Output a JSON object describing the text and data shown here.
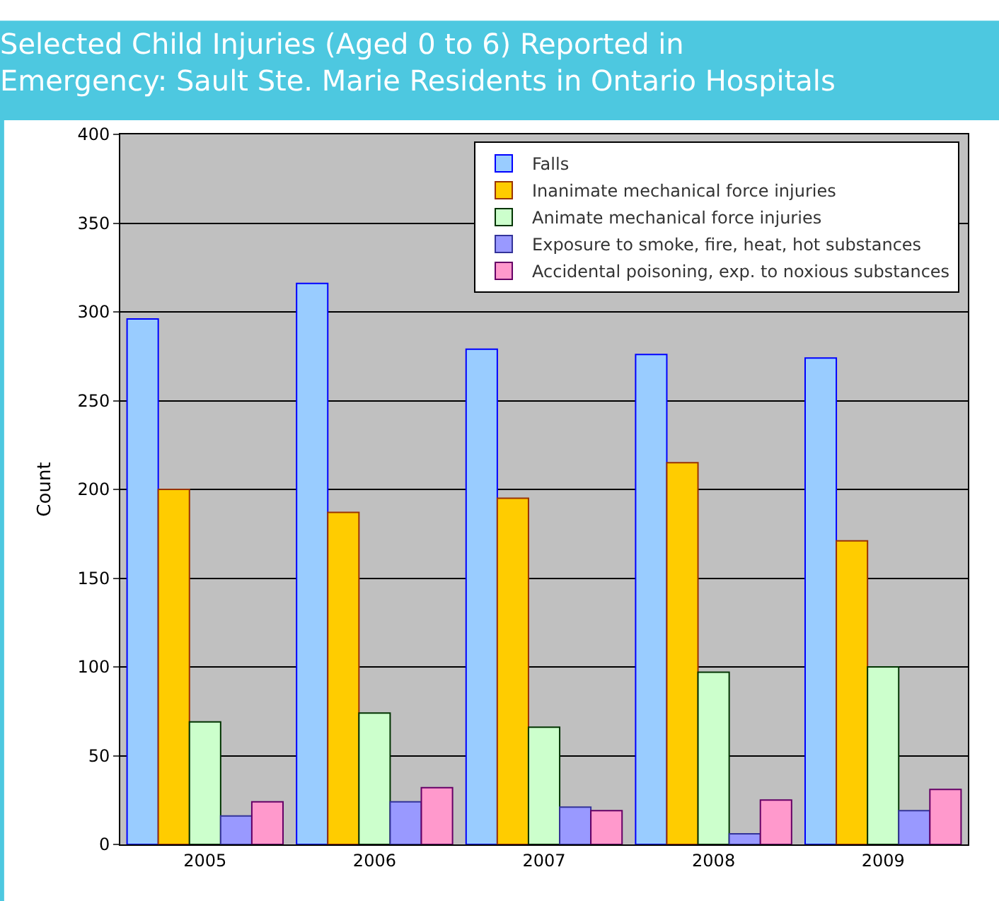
{
  "chart_data": {
    "type": "bar",
    "title": "Selected Child Injuries (Aged 0 to 6) Reported in\nEmergency: Sault Ste. Marie Residents in Ontario Hospitals",
    "ylabel": "Count",
    "categories": [
      "2005",
      "2006",
      "2007",
      "2008",
      "2009"
    ],
    "ylim": [
      0,
      400
    ],
    "yticks": [
      0,
      50,
      100,
      150,
      200,
      250,
      300,
      350,
      400
    ],
    "grid": "y",
    "legend": "top right",
    "series": [
      {
        "name": "Falls",
        "color": "#99ccff",
        "values": [
          296,
          316,
          279,
          276,
          274
        ]
      },
      {
        "name": "Inanimate mechanical force injuries",
        "color": "#ffcc00",
        "values": [
          200,
          187,
          195,
          215,
          171
        ]
      },
      {
        "name": "Animate mechanical force injuries",
        "color": "#ccffcc",
        "values": [
          69,
          74,
          66,
          97,
          100
        ]
      },
      {
        "name": "Exposure to smoke, fire, heat, hot substances",
        "color": "#9999ff",
        "values": [
          16,
          24,
          21,
          6,
          19
        ]
      },
      {
        "name": "Accidental poisoning, exp. to noxious substances",
        "color": "#ff99cc",
        "values": [
          24,
          32,
          19,
          25,
          31
        ]
      }
    ]
  }
}
